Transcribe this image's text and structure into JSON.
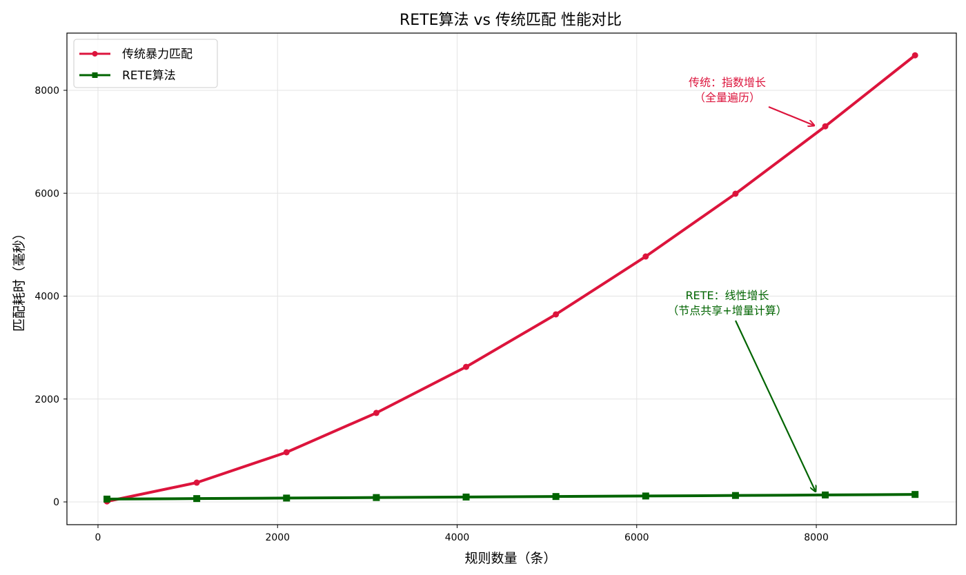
{
  "chart_data": {
    "type": "line",
    "title": "RETE算法 vs 传统匹配 性能对比",
    "xlabel": "规则数量（条）",
    "ylabel": "匹配耗时（毫秒）",
    "x": [
      100,
      1100,
      2100,
      3100,
      4100,
      5100,
      6100,
      7100,
      8100,
      9100
    ],
    "xlim": [
      -300,
      9400
    ],
    "ylim": [
      -450,
      9100
    ],
    "xticks": [
      0,
      2000,
      4000,
      6000,
      8000
    ],
    "yticks": [
      0,
      2000,
      4000,
      6000,
      8000
    ],
    "grid": true,
    "legend_position": "upper left",
    "series": [
      {
        "name": "传统暴力匹配",
        "color": "#dc143c",
        "marker": "circle",
        "values": [
          10,
          375,
          965,
          1730,
          2625,
          3645,
          4770,
          5990,
          7300,
          8680
        ]
      },
      {
        "name": "RETE算法",
        "color": "#006400",
        "marker": "square",
        "values": [
          55,
          65,
          75,
          85,
          95,
          105,
          115,
          125,
          135,
          145
        ]
      }
    ],
    "annotations": [
      {
        "text": [
          "传统：指数增长",
          "（全量遍历）"
        ],
        "color": "#dc143c",
        "text_pos": [
          6500,
          8100
        ],
        "arrow_to": [
          8000,
          7300
        ]
      },
      {
        "text": [
          "RETE：线性增长",
          "（节点共享+增量计算）"
        ],
        "color": "#006400",
        "text_pos": [
          6500,
          3950
        ],
        "arrow_to": [
          8000,
          150
        ]
      }
    ]
  }
}
